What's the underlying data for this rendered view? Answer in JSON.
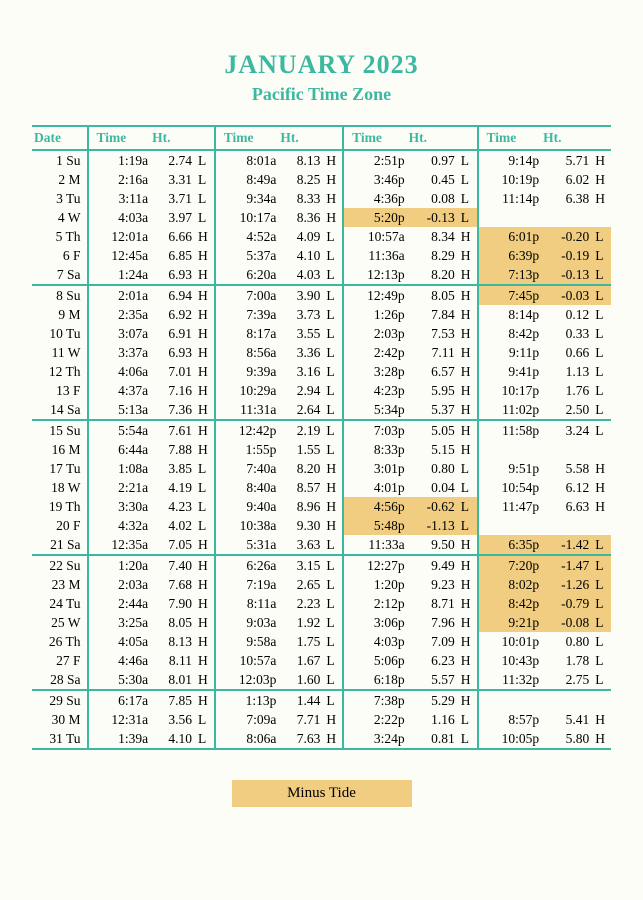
{
  "title": "JANUARY 2023",
  "subtitle": "Pacific Time Zone",
  "legend": "Minus Tide",
  "headers": {
    "date": "Date",
    "time": "Time",
    "ht": "Ht."
  },
  "colors": {
    "accent": "#3db8a0",
    "highlight": "#f0cd80",
    "background": "#fdfdf8"
  },
  "rows": [
    {
      "date": "1 Su",
      "t": [
        [
          "1:19a",
          "2.74",
          "L",
          0
        ],
        [
          "8:01a",
          "8.13",
          "H",
          0
        ],
        [
          "2:51p",
          "0.97",
          "L",
          0
        ],
        [
          "9:14p",
          "5.71",
          "H",
          0
        ]
      ]
    },
    {
      "date": "2 M",
      "t": [
        [
          "2:16a",
          "3.31",
          "L",
          0
        ],
        [
          "8:49a",
          "8.25",
          "H",
          0
        ],
        [
          "3:46p",
          "0.45",
          "L",
          0
        ],
        [
          "10:19p",
          "6.02",
          "H",
          0
        ]
      ]
    },
    {
      "date": "3 Tu",
      "t": [
        [
          "3:11a",
          "3.71",
          "L",
          0
        ],
        [
          "9:34a",
          "8.33",
          "H",
          0
        ],
        [
          "4:36p",
          "0.08",
          "L",
          0
        ],
        [
          "11:14p",
          "6.38",
          "H",
          0
        ]
      ]
    },
    {
      "date": "4 W",
      "t": [
        [
          "4:03a",
          "3.97",
          "L",
          0
        ],
        [
          "10:17a",
          "8.36",
          "H",
          0
        ],
        [
          "5:20p",
          "-0.13",
          "L",
          1
        ],
        [
          "",
          "",
          "",
          0
        ]
      ]
    },
    {
      "date": "5 Th",
      "t": [
        [
          "12:01a",
          "6.66",
          "H",
          0
        ],
        [
          "4:52a",
          "4.09",
          "L",
          0
        ],
        [
          "10:57a",
          "8.34",
          "H",
          0
        ],
        [
          "6:01p",
          "-0.20",
          "L",
          1
        ]
      ]
    },
    {
      "date": "6 F",
      "t": [
        [
          "12:45a",
          "6.85",
          "H",
          0
        ],
        [
          "5:37a",
          "4.10",
          "L",
          0
        ],
        [
          "11:36a",
          "8.29",
          "H",
          0
        ],
        [
          "6:39p",
          "-0.19",
          "L",
          1
        ]
      ]
    },
    {
      "date": "7 Sa",
      "we": 1,
      "t": [
        [
          "1:24a",
          "6.93",
          "H",
          0
        ],
        [
          "6:20a",
          "4.03",
          "L",
          0
        ],
        [
          "12:13p",
          "8.20",
          "H",
          0
        ],
        [
          "7:13p",
          "-0.13",
          "L",
          1
        ]
      ]
    },
    {
      "date": "8 Su",
      "t": [
        [
          "2:01a",
          "6.94",
          "H",
          0
        ],
        [
          "7:00a",
          "3.90",
          "L",
          0
        ],
        [
          "12:49p",
          "8.05",
          "H",
          0
        ],
        [
          "7:45p",
          "-0.03",
          "L",
          1
        ]
      ]
    },
    {
      "date": "9 M",
      "t": [
        [
          "2:35a",
          "6.92",
          "H",
          0
        ],
        [
          "7:39a",
          "3.73",
          "L",
          0
        ],
        [
          "1:26p",
          "7.84",
          "H",
          0
        ],
        [
          "8:14p",
          "0.12",
          "L",
          0
        ]
      ]
    },
    {
      "date": "10 Tu",
      "t": [
        [
          "3:07a",
          "6.91",
          "H",
          0
        ],
        [
          "8:17a",
          "3.55",
          "L",
          0
        ],
        [
          "2:03p",
          "7.53",
          "H",
          0
        ],
        [
          "8:42p",
          "0.33",
          "L",
          0
        ]
      ]
    },
    {
      "date": "11 W",
      "t": [
        [
          "3:37a",
          "6.93",
          "H",
          0
        ],
        [
          "8:56a",
          "3.36",
          "L",
          0
        ],
        [
          "2:42p",
          "7.11",
          "H",
          0
        ],
        [
          "9:11p",
          "0.66",
          "L",
          0
        ]
      ]
    },
    {
      "date": "12 Th",
      "t": [
        [
          "4:06a",
          "7.01",
          "H",
          0
        ],
        [
          "9:39a",
          "3.16",
          "L",
          0
        ],
        [
          "3:28p",
          "6.57",
          "H",
          0
        ],
        [
          "9:41p",
          "1.13",
          "L",
          0
        ]
      ]
    },
    {
      "date": "13 F",
      "t": [
        [
          "4:37a",
          "7.16",
          "H",
          0
        ],
        [
          "10:29a",
          "2.94",
          "L",
          0
        ],
        [
          "4:23p",
          "5.95",
          "H",
          0
        ],
        [
          "10:17p",
          "1.76",
          "L",
          0
        ]
      ]
    },
    {
      "date": "14 Sa",
      "we": 1,
      "t": [
        [
          "5:13a",
          "7.36",
          "H",
          0
        ],
        [
          "11:31a",
          "2.64",
          "L",
          0
        ],
        [
          "5:34p",
          "5.37",
          "H",
          0
        ],
        [
          "11:02p",
          "2.50",
          "L",
          0
        ]
      ]
    },
    {
      "date": "15 Su",
      "t": [
        [
          "5:54a",
          "7.61",
          "H",
          0
        ],
        [
          "12:42p",
          "2.19",
          "L",
          0
        ],
        [
          "7:03p",
          "5.05",
          "H",
          0
        ],
        [
          "11:58p",
          "3.24",
          "L",
          0
        ]
      ]
    },
    {
      "date": "16 M",
      "t": [
        [
          "6:44a",
          "7.88",
          "H",
          0
        ],
        [
          "1:55p",
          "1.55",
          "L",
          0
        ],
        [
          "8:33p",
          "5.15",
          "H",
          0
        ],
        [
          "",
          "",
          "",
          0
        ]
      ]
    },
    {
      "date": "17 Tu",
      "t": [
        [
          "1:08a",
          "3.85",
          "L",
          0
        ],
        [
          "7:40a",
          "8.20",
          "H",
          0
        ],
        [
          "3:01p",
          "0.80",
          "L",
          0
        ],
        [
          "9:51p",
          "5.58",
          "H",
          0
        ]
      ]
    },
    {
      "date": "18 W",
      "t": [
        [
          "2:21a",
          "4.19",
          "L",
          0
        ],
        [
          "8:40a",
          "8.57",
          "H",
          0
        ],
        [
          "4:01p",
          "0.04",
          "L",
          0
        ],
        [
          "10:54p",
          "6.12",
          "H",
          0
        ]
      ]
    },
    {
      "date": "19 Th",
      "t": [
        [
          "3:30a",
          "4.23",
          "L",
          0
        ],
        [
          "9:40a",
          "8.96",
          "H",
          0
        ],
        [
          "4:56p",
          "-0.62",
          "L",
          1
        ],
        [
          "11:47p",
          "6.63",
          "H",
          0
        ]
      ]
    },
    {
      "date": "20 F",
      "t": [
        [
          "4:32a",
          "4.02",
          "L",
          0
        ],
        [
          "10:38a",
          "9.30",
          "H",
          0
        ],
        [
          "5:48p",
          "-1.13",
          "L",
          1
        ],
        [
          "",
          "",
          "",
          0
        ]
      ]
    },
    {
      "date": "21 Sa",
      "we": 1,
      "t": [
        [
          "12:35a",
          "7.05",
          "H",
          0
        ],
        [
          "5:31a",
          "3.63",
          "L",
          0
        ],
        [
          "11:33a",
          "9.50",
          "H",
          0
        ],
        [
          "6:35p",
          "-1.42",
          "L",
          1
        ]
      ]
    },
    {
      "date": "22 Su",
      "t": [
        [
          "1:20a",
          "7.40",
          "H",
          0
        ],
        [
          "6:26a",
          "3.15",
          "L",
          0
        ],
        [
          "12:27p",
          "9.49",
          "H",
          0
        ],
        [
          "7:20p",
          "-1.47",
          "L",
          1
        ]
      ]
    },
    {
      "date": "23 M",
      "t": [
        [
          "2:03a",
          "7.68",
          "H",
          0
        ],
        [
          "7:19a",
          "2.65",
          "L",
          0
        ],
        [
          "1:20p",
          "9.23",
          "H",
          0
        ],
        [
          "8:02p",
          "-1.26",
          "L",
          1
        ]
      ]
    },
    {
      "date": "24 Tu",
      "t": [
        [
          "2:44a",
          "7.90",
          "H",
          0
        ],
        [
          "8:11a",
          "2.23",
          "L",
          0
        ],
        [
          "2:12p",
          "8.71",
          "H",
          0
        ],
        [
          "8:42p",
          "-0.79",
          "L",
          1
        ]
      ]
    },
    {
      "date": "25 W",
      "t": [
        [
          "3:25a",
          "8.05",
          "H",
          0
        ],
        [
          "9:03a",
          "1.92",
          "L",
          0
        ],
        [
          "3:06p",
          "7.96",
          "H",
          0
        ],
        [
          "9:21p",
          "-0.08",
          "L",
          1
        ]
      ]
    },
    {
      "date": "26 Th",
      "t": [
        [
          "4:05a",
          "8.13",
          "H",
          0
        ],
        [
          "9:58a",
          "1.75",
          "L",
          0
        ],
        [
          "4:03p",
          "7.09",
          "H",
          0
        ],
        [
          "10:01p",
          "0.80",
          "L",
          0
        ]
      ]
    },
    {
      "date": "27 F",
      "t": [
        [
          "4:46a",
          "8.11",
          "H",
          0
        ],
        [
          "10:57a",
          "1.67",
          "L",
          0
        ],
        [
          "5:06p",
          "6.23",
          "H",
          0
        ],
        [
          "10:43p",
          "1.78",
          "L",
          0
        ]
      ]
    },
    {
      "date": "28 Sa",
      "we": 1,
      "t": [
        [
          "5:30a",
          "8.01",
          "H",
          0
        ],
        [
          "12:03p",
          "1.60",
          "L",
          0
        ],
        [
          "6:18p",
          "5.57",
          "H",
          0
        ],
        [
          "11:32p",
          "2.75",
          "L",
          0
        ]
      ]
    },
    {
      "date": "29 Su",
      "t": [
        [
          "6:17a",
          "7.85",
          "H",
          0
        ],
        [
          "1:13p",
          "1.44",
          "L",
          0
        ],
        [
          "7:38p",
          "5.29",
          "H",
          0
        ],
        [
          "",
          "",
          "",
          0
        ]
      ]
    },
    {
      "date": "30 M",
      "t": [
        [
          "12:31a",
          "3.56",
          "L",
          0
        ],
        [
          "7:09a",
          "7.71",
          "H",
          0
        ],
        [
          "2:22p",
          "1.16",
          "L",
          0
        ],
        [
          "8:57p",
          "5.41",
          "H",
          0
        ]
      ]
    },
    {
      "date": "31 Tu",
      "t": [
        [
          "1:39a",
          "4.10",
          "L",
          0
        ],
        [
          "8:06a",
          "7.63",
          "H",
          0
        ],
        [
          "3:24p",
          "0.81",
          "L",
          0
        ],
        [
          "10:05p",
          "5.80",
          "H",
          0
        ]
      ]
    }
  ]
}
